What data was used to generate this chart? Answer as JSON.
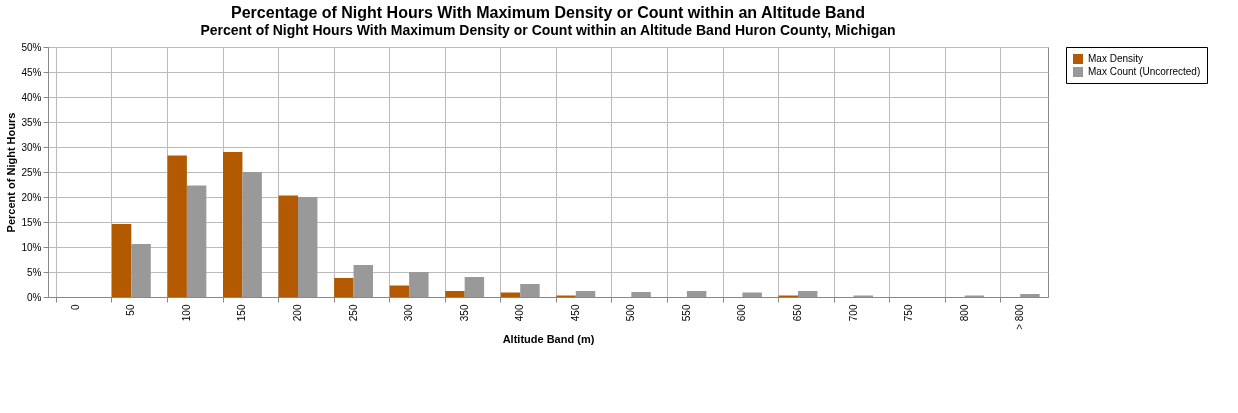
{
  "chart_data": {
    "type": "bar",
    "title": "Percentage of Night Hours With Maximum Density or Count within an Altitude Band",
    "subtitle": "Percent of Night Hours With Maximum Density or Count within an Altitude Band Huron County, Michigan",
    "xlabel": "Altitude Band (m)",
    "ylabel": "Percent of Night Hours",
    "categories": [
      "0",
      "50",
      "100",
      "150",
      "200",
      "250",
      "300",
      "350",
      "400",
      "450",
      "500",
      "550",
      "600",
      "650",
      "700",
      "750",
      "800",
      "> 800"
    ],
    "series": [
      {
        "name": "Max Density",
        "color": "#b35a00",
        "values": [
          0,
          14.6,
          28.3,
          29,
          20.3,
          3.8,
          2.3,
          1.2,
          0.9,
          0.3,
          0,
          0,
          0,
          0.3,
          0,
          0,
          0,
          0
        ]
      },
      {
        "name": "Max Count (Uncorrected)",
        "color": "#999999",
        "values": [
          0,
          10.6,
          22.3,
          25,
          20,
          6.4,
          5,
          4,
          2.6,
          1.2,
          1,
          1.2,
          0.9,
          1.2,
          0.3,
          0,
          0.3,
          0.6
        ]
      }
    ],
    "ylim": [
      0,
      50
    ],
    "yticks": [
      {
        "value": 0,
        "label": "0%"
      },
      {
        "value": 5,
        "label": "5%"
      },
      {
        "value": 10,
        "label": "10%"
      },
      {
        "value": 15,
        "label": "15%"
      },
      {
        "value": 20,
        "label": "20%"
      },
      {
        "value": 25,
        "label": "25%"
      },
      {
        "value": 30,
        "label": "30%"
      },
      {
        "value": 35,
        "label": "35%"
      },
      {
        "value": 40,
        "label": "40%"
      },
      {
        "value": 45,
        "label": "45%"
      },
      {
        "value": 50,
        "label": "50%"
      }
    ],
    "grid": true,
    "legend": "right"
  }
}
